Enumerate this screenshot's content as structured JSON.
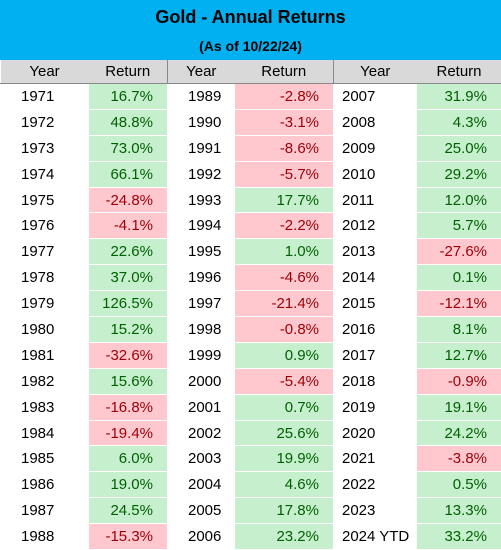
{
  "header": {
    "title": "Gold - Annual Returns",
    "subtitle": "(As of 10/22/24)"
  },
  "table": {
    "columns": [
      "Year",
      "Return",
      "Year",
      "Return",
      "Year",
      "Return"
    ],
    "rows": [
      [
        "1971",
        "16.7%",
        "1989",
        "-2.8%",
        "2007",
        "31.9%"
      ],
      [
        "1972",
        "48.8%",
        "1990",
        "-3.1%",
        "2008",
        "4.3%"
      ],
      [
        "1973",
        "73.0%",
        "1991",
        "-8.6%",
        "2009",
        "25.0%"
      ],
      [
        "1974",
        "66.1%",
        "1992",
        "-5.7%",
        "2010",
        "29.2%"
      ],
      [
        "1975",
        "-24.8%",
        "1993",
        "17.7%",
        "2011",
        "12.0%"
      ],
      [
        "1976",
        "-4.1%",
        "1994",
        "-2.2%",
        "2012",
        "5.7%"
      ],
      [
        "1977",
        "22.6%",
        "1995",
        "1.0%",
        "2013",
        "-27.6%"
      ],
      [
        "1978",
        "37.0%",
        "1996",
        "-4.6%",
        "2014",
        "0.1%"
      ],
      [
        "1979",
        "126.5%",
        "1997",
        "-21.4%",
        "2015",
        "-12.1%"
      ],
      [
        "1980",
        "15.2%",
        "1998",
        "-0.8%",
        "2016",
        "8.1%"
      ],
      [
        "1981",
        "-32.6%",
        "1999",
        "0.9%",
        "2017",
        "12.7%"
      ],
      [
        "1982",
        "15.6%",
        "2000",
        "-5.4%",
        "2018",
        "-0.9%"
      ],
      [
        "1983",
        "-16.8%",
        "2001",
        "0.7%",
        "2019",
        "19.1%"
      ],
      [
        "1984",
        "-19.4%",
        "2002",
        "25.6%",
        "2020",
        "24.2%"
      ],
      [
        "1985",
        "6.0%",
        "2003",
        "19.9%",
        "2021",
        "-3.8%"
      ],
      [
        "1986",
        "19.0%",
        "2004",
        "4.6%",
        "2022",
        "0.5%"
      ],
      [
        "1987",
        "24.5%",
        "2005",
        "17.8%",
        "2023",
        "13.3%"
      ],
      [
        "1988",
        "-15.3%",
        "2006",
        "23.2%",
        "2024 YTD",
        "33.2%"
      ]
    ]
  }
}
